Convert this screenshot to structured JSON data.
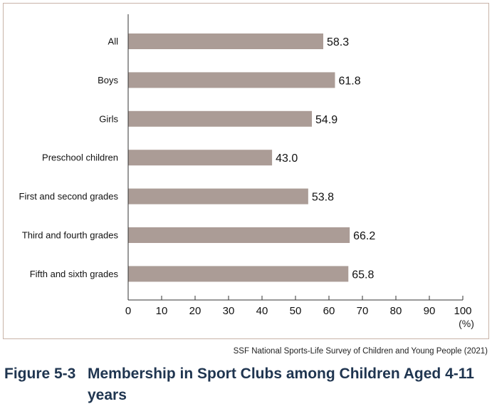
{
  "chart_data": {
    "type": "bar",
    "orientation": "horizontal",
    "categories": [
      "All",
      "Boys",
      "Girls",
      "Preschool children",
      "First and second grades",
      "Third and fourth grades",
      "Fifth and sixth grades"
    ],
    "values": [
      58.3,
      61.8,
      54.9,
      43.0,
      53.8,
      66.2,
      65.8
    ],
    "value_labels": [
      "58.3",
      "61.8",
      "54.9",
      "43.0",
      "53.8",
      "66.2",
      "65.8"
    ],
    "xlim": [
      0,
      100
    ],
    "x_ticks": [
      0,
      10,
      20,
      30,
      40,
      50,
      60,
      70,
      80,
      90,
      100
    ],
    "x_unit_label": "(%)",
    "grid": false,
    "bar_color": "#ab9c96",
    "axis_color": "#333333"
  },
  "source": "SSF National Sports-Life Survey of Children and Young People (2021)",
  "caption": {
    "number": "Figure 5-3",
    "text": "Membership in Sport Clubs among Children Aged 4-11 years",
    "color": "#1f3550"
  },
  "frame_color": "#c9b3a8"
}
